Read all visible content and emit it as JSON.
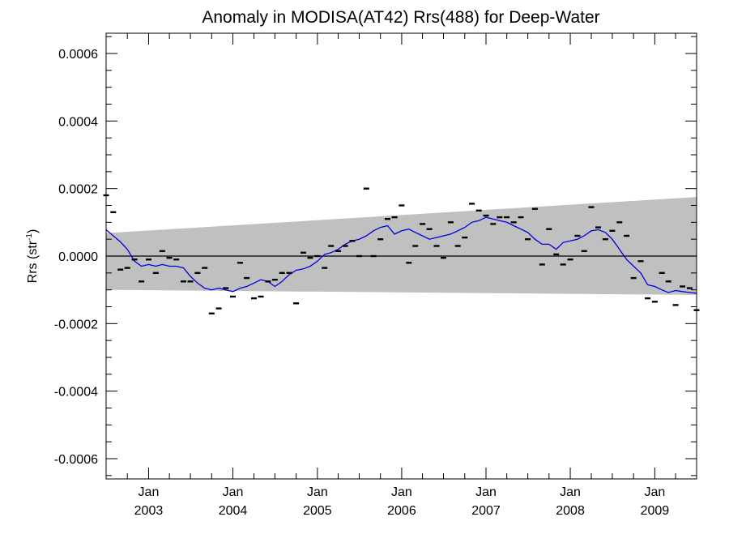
{
  "chart_data": {
    "type": "line",
    "title": "Anomaly in MODISA(AT42) Rrs(488) for Deep-Water",
    "ylabel_main": "Rrs (str",
    "ylabel_sup": "-1",
    "ylabel_tail": ")",
    "x_range": [
      "2002-07-01",
      "2009-07-01"
    ],
    "ylim": [
      -0.00066,
      0.00066
    ],
    "y_ticks": [
      {
        "value": 0.0006,
        "label": "0.0006"
      },
      {
        "value": 0.0004,
        "label": "0.0004"
      },
      {
        "value": 0.0002,
        "label": "0.0002"
      },
      {
        "value": 0.0,
        "label": "0.0000"
      },
      {
        "value": -0.0002,
        "label": "-0.0002"
      },
      {
        "value": -0.0004,
        "label": "-0.0004"
      },
      {
        "value": -0.0006,
        "label": "-0.0006"
      }
    ],
    "x_ticks": [
      {
        "date": "2003-01-01",
        "month": "Jan",
        "year": "2003"
      },
      {
        "date": "2004-01-01",
        "month": "Jan",
        "year": "2004"
      },
      {
        "date": "2005-01-01",
        "month": "Jan",
        "year": "2005"
      },
      {
        "date": "2006-01-01",
        "month": "Jan",
        "year": "2006"
      },
      {
        "date": "2007-01-01",
        "month": "Jan",
        "year": "2007"
      },
      {
        "date": "2008-01-01",
        "month": "Jan",
        "year": "2008"
      },
      {
        "date": "2009-01-01",
        "month": "Jan",
        "year": "2009"
      }
    ],
    "confidence_band": {
      "color": "#c0c0c0",
      "start": {
        "date": "2002-07-01",
        "upper": 6.8e-05,
        "lower": -0.0001
      },
      "end": {
        "date": "2009-07-01",
        "upper": 0.000175,
        "lower": -0.000115
      }
    },
    "zero_line": 0.0,
    "monthly_anomalies": {
      "marker": "dash",
      "color": "#000000",
      "points": [
        [
          "2002-07-01",
          0.00018
        ],
        [
          "2002-08-01",
          0.00013
        ],
        [
          "2002-09-01",
          -4e-05
        ],
        [
          "2002-10-01",
          -3.5e-05
        ],
        [
          "2002-11-01",
          -1e-05
        ],
        [
          "2002-12-01",
          -7.5e-05
        ],
        [
          "2003-01-01",
          -1e-05
        ],
        [
          "2003-02-01",
          -5e-05
        ],
        [
          "2003-03-01",
          1.5e-05
        ],
        [
          "2003-04-01",
          -5e-06
        ],
        [
          "2003-05-01",
          -1e-05
        ],
        [
          "2003-06-01",
          -7.5e-05
        ],
        [
          "2003-07-01",
          -7.5e-05
        ],
        [
          "2003-08-01",
          -5e-05
        ],
        [
          "2003-09-01",
          -3.5e-05
        ],
        [
          "2003-10-01",
          -0.00017
        ],
        [
          "2003-11-01",
          -0.000155
        ],
        [
          "2003-12-01",
          -9.5e-05
        ],
        [
          "2004-01-01",
          -0.00012
        ],
        [
          "2004-02-01",
          -2e-05
        ],
        [
          "2004-03-01",
          -6.5e-05
        ],
        [
          "2004-04-01",
          -0.000125
        ],
        [
          "2004-05-01",
          -0.00012
        ],
        [
          "2004-06-01",
          -7.5e-05
        ],
        [
          "2004-07-01",
          -7e-05
        ],
        [
          "2004-08-01",
          -5e-05
        ],
        [
          "2004-09-01",
          -5e-05
        ],
        [
          "2004-10-01",
          -0.00014
        ],
        [
          "2004-11-01",
          1e-05
        ],
        [
          "2004-12-01",
          -5e-06
        ],
        [
          "2005-01-01",
          0.0
        ],
        [
          "2005-02-01",
          -3.5e-05
        ],
        [
          "2005-03-01",
          3e-05
        ],
        [
          "2005-04-01",
          1.5e-05
        ],
        [
          "2005-05-01",
          3e-05
        ],
        [
          "2005-06-01",
          4.5e-05
        ],
        [
          "2005-07-01",
          0.0
        ],
        [
          "2005-08-01",
          0.0002
        ],
        [
          "2005-09-01",
          0.0
        ],
        [
          "2005-10-01",
          5e-05
        ],
        [
          "2005-11-01",
          0.00011
        ],
        [
          "2005-12-01",
          0.000115
        ],
        [
          "2006-01-01",
          0.00015
        ],
        [
          "2006-02-01",
          -2e-05
        ],
        [
          "2006-03-01",
          3e-05
        ],
        [
          "2006-04-01",
          9.5e-05
        ],
        [
          "2006-05-01",
          8e-05
        ],
        [
          "2006-06-01",
          3e-05
        ],
        [
          "2006-07-01",
          -5e-06
        ],
        [
          "2006-08-01",
          0.0001
        ],
        [
          "2006-09-01",
          3e-05
        ],
        [
          "2006-10-01",
          5.5e-05
        ],
        [
          "2006-11-01",
          0.000155
        ],
        [
          "2006-12-01",
          0.000135
        ],
        [
          "2007-01-01",
          0.00012
        ],
        [
          "2007-02-01",
          9.5e-05
        ],
        [
          "2007-03-01",
          0.000115
        ],
        [
          "2007-04-01",
          0.000115
        ],
        [
          "2007-05-01",
          0.0001
        ],
        [
          "2007-06-01",
          0.000115
        ],
        [
          "2007-07-01",
          5e-05
        ],
        [
          "2007-08-01",
          0.00014
        ],
        [
          "2007-09-01",
          -2.5e-05
        ],
        [
          "2007-10-01",
          8e-05
        ],
        [
          "2007-11-01",
          5e-06
        ],
        [
          "2007-12-01",
          -2.5e-05
        ],
        [
          "2008-01-01",
          -1e-05
        ],
        [
          "2008-02-01",
          6e-05
        ],
        [
          "2008-03-01",
          1.5e-05
        ],
        [
          "2008-04-01",
          0.000145
        ],
        [
          "2008-05-01",
          8.5e-05
        ],
        [
          "2008-06-01",
          5e-05
        ],
        [
          "2008-07-01",
          7.5e-05
        ],
        [
          "2008-08-01",
          0.0001
        ],
        [
          "2008-09-01",
          6e-05
        ],
        [
          "2008-10-01",
          -6.5e-05
        ],
        [
          "2008-11-01",
          -1.5e-05
        ],
        [
          "2008-12-01",
          -0.000125
        ],
        [
          "2009-01-01",
          -0.000135
        ],
        [
          "2009-02-01",
          -5e-05
        ],
        [
          "2009-03-01",
          -7.5e-05
        ],
        [
          "2009-04-01",
          -0.000145
        ],
        [
          "2009-05-01",
          -9e-05
        ],
        [
          "2009-06-01",
          -9.5e-05
        ],
        [
          "2009-07-01",
          -0.00016
        ]
      ]
    },
    "running_mean": {
      "color": "#0000e0",
      "points": [
        [
          "2002-07-01",
          7.8e-05
        ],
        [
          "2002-08-01",
          6e-05
        ],
        [
          "2002-09-01",
          4.2e-05
        ],
        [
          "2002-10-01",
          2e-05
        ],
        [
          "2002-11-01",
          -1.5e-05
        ],
        [
          "2002-12-01",
          -3e-05
        ],
        [
          "2003-01-01",
          -2.5e-05
        ],
        [
          "2003-02-01",
          -3e-05
        ],
        [
          "2003-03-01",
          -2.5e-05
        ],
        [
          "2003-04-01",
          -3e-05
        ],
        [
          "2003-05-01",
          -3e-05
        ],
        [
          "2003-06-01",
          -3.5e-05
        ],
        [
          "2003-07-01",
          -6e-05
        ],
        [
          "2003-08-01",
          -8e-05
        ],
        [
          "2003-09-01",
          -9.5e-05
        ],
        [
          "2003-10-01",
          -0.0001
        ],
        [
          "2003-11-01",
          -9.5e-05
        ],
        [
          "2003-12-01",
          -0.0001
        ],
        [
          "2004-01-01",
          -0.000105
        ],
        [
          "2004-02-01",
          -9.5e-05
        ],
        [
          "2004-03-01",
          -9e-05
        ],
        [
          "2004-04-01",
          -8e-05
        ],
        [
          "2004-05-01",
          -7e-05
        ],
        [
          "2004-06-01",
          -7.5e-05
        ],
        [
          "2004-07-01",
          -9e-05
        ],
        [
          "2004-08-01",
          -7.5e-05
        ],
        [
          "2004-09-01",
          -5.5e-05
        ],
        [
          "2004-10-01",
          -4.2e-05
        ],
        [
          "2004-11-01",
          -3.8e-05
        ],
        [
          "2004-12-01",
          -3e-05
        ],
        [
          "2005-01-01",
          -1.5e-05
        ],
        [
          "2005-02-01",
          5e-06
        ],
        [
          "2005-03-01",
          1e-05
        ],
        [
          "2005-04-01",
          2e-05
        ],
        [
          "2005-05-01",
          3.5e-05
        ],
        [
          "2005-06-01",
          4.5e-05
        ],
        [
          "2005-07-01",
          5e-05
        ],
        [
          "2005-08-01",
          6e-05
        ],
        [
          "2005-09-01",
          7.5e-05
        ],
        [
          "2005-10-01",
          8.5e-05
        ],
        [
          "2005-11-01",
          9e-05
        ],
        [
          "2005-12-01",
          6.5e-05
        ],
        [
          "2006-01-01",
          7.5e-05
        ],
        [
          "2006-02-01",
          8e-05
        ],
        [
          "2006-03-01",
          7e-05
        ],
        [
          "2006-04-01",
          6e-05
        ],
        [
          "2006-05-01",
          5e-05
        ],
        [
          "2006-06-01",
          5.5e-05
        ],
        [
          "2006-07-01",
          6e-05
        ],
        [
          "2006-08-01",
          6.5e-05
        ],
        [
          "2006-09-01",
          7.5e-05
        ],
        [
          "2006-10-01",
          8.5e-05
        ],
        [
          "2006-11-01",
          0.0001
        ],
        [
          "2006-12-01",
          0.000105
        ],
        [
          "2007-01-01",
          0.000115
        ],
        [
          "2007-02-01",
          0.00011
        ],
        [
          "2007-03-01",
          0.000105
        ],
        [
          "2007-04-01",
          0.0001
        ],
        [
          "2007-05-01",
          9e-05
        ],
        [
          "2007-06-01",
          8e-05
        ],
        [
          "2007-07-01",
          7e-05
        ],
        [
          "2007-08-01",
          5e-05
        ],
        [
          "2007-09-01",
          3.5e-05
        ],
        [
          "2007-10-01",
          3.5e-05
        ],
        [
          "2007-11-01",
          2e-05
        ],
        [
          "2007-12-01",
          4e-05
        ],
        [
          "2008-01-01",
          4.5e-05
        ],
        [
          "2008-02-01",
          5e-05
        ],
        [
          "2008-03-01",
          6e-05
        ],
        [
          "2008-04-01",
          7.5e-05
        ],
        [
          "2008-05-01",
          7.8e-05
        ],
        [
          "2008-06-01",
          7e-05
        ],
        [
          "2008-07-01",
          5e-05
        ],
        [
          "2008-08-01",
          2e-05
        ],
        [
          "2008-09-01",
          -1e-05
        ],
        [
          "2008-10-01",
          -3e-05
        ],
        [
          "2008-11-01",
          -5e-05
        ],
        [
          "2008-12-01",
          -8.5e-05
        ],
        [
          "2009-01-01",
          -9e-05
        ],
        [
          "2009-02-01",
          -0.0001
        ],
        [
          "2009-03-01",
          -0.000108
        ],
        [
          "2009-04-01",
          -0.000102
        ],
        [
          "2009-05-01",
          -0.000105
        ],
        [
          "2009-06-01",
          -0.000108
        ],
        [
          "2009-07-01",
          -0.00011
        ]
      ]
    },
    "grid": false,
    "legend": "none"
  }
}
